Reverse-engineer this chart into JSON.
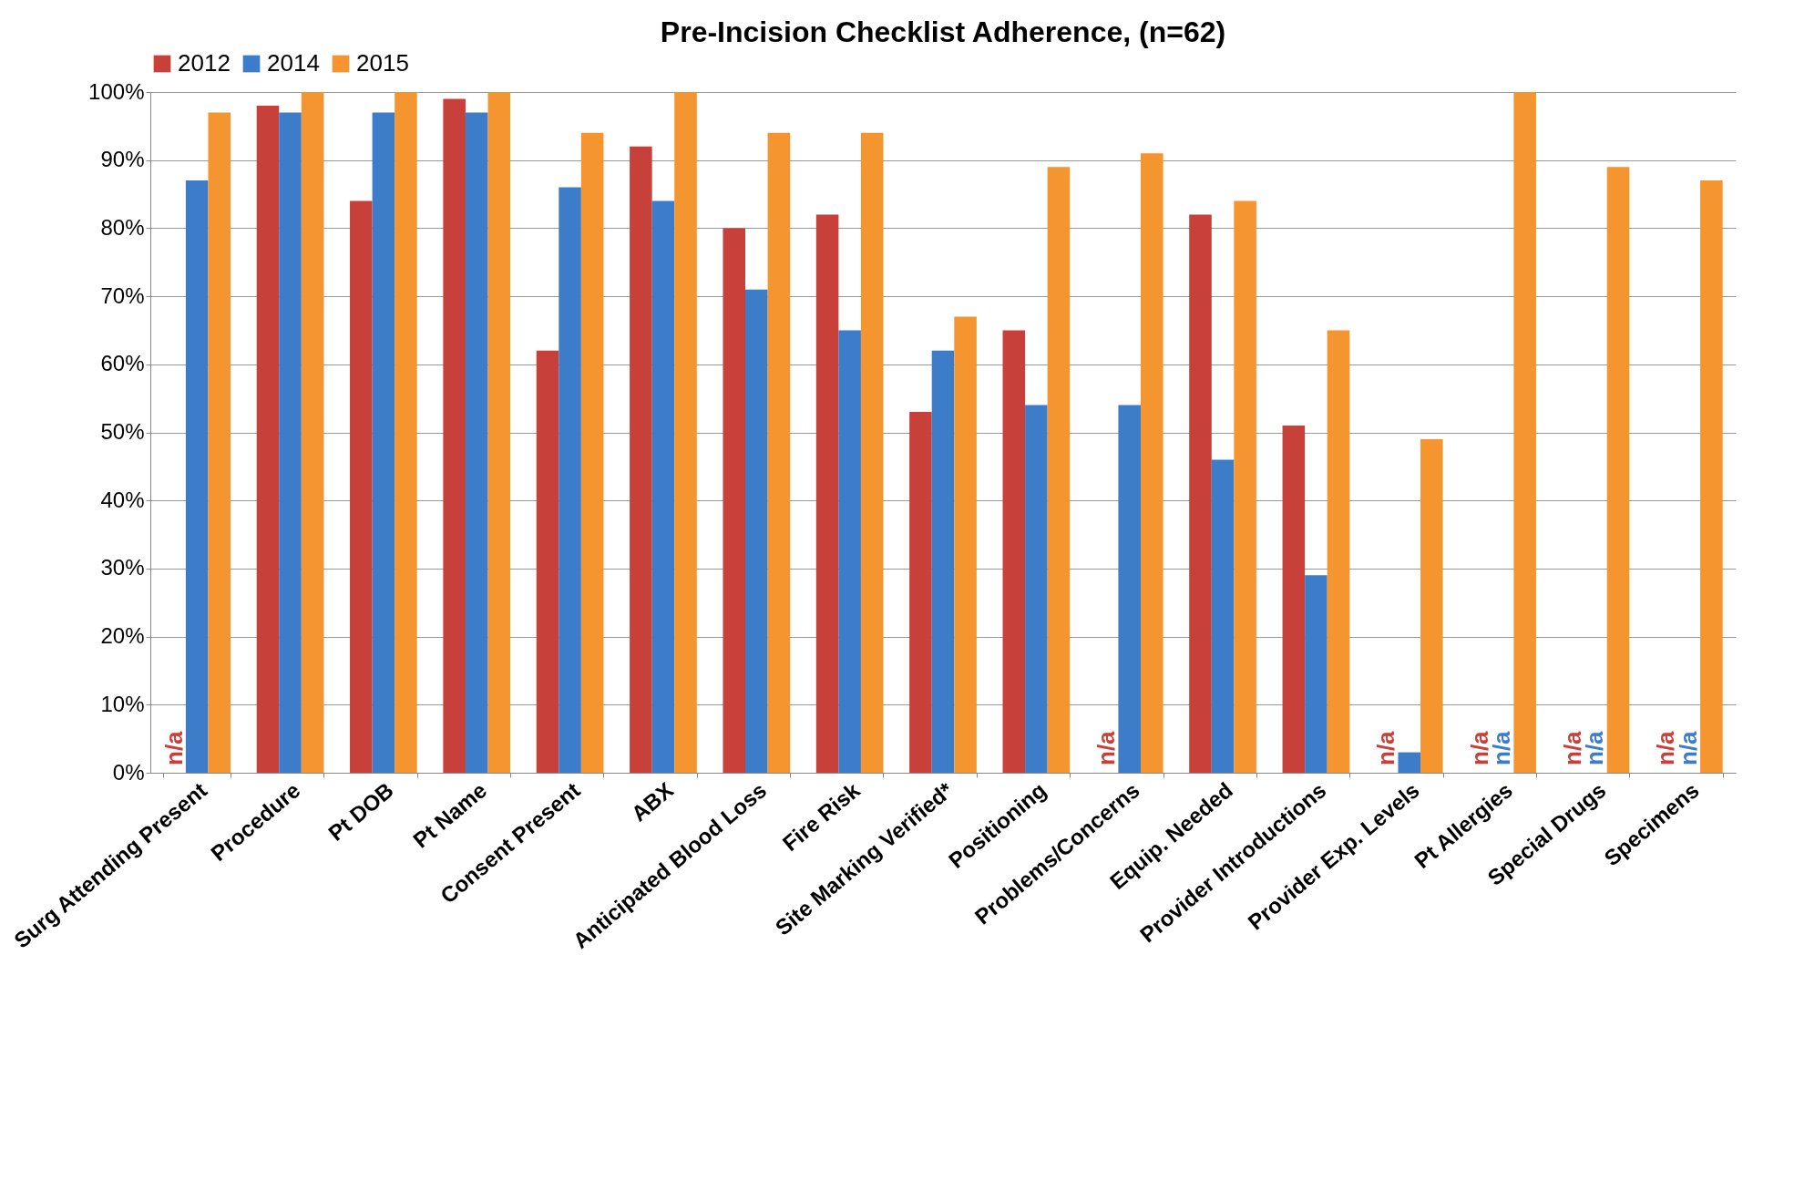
{
  "chart_data": {
    "type": "bar",
    "title": "Pre-Incision Checklist Adherence,       (n=62)",
    "categories": [
      "Surg Attending Present",
      "Procedure",
      "Pt DOB",
      "Pt Name",
      "Consent Present",
      "ABX",
      "Anticipated Blood Loss",
      "Fire Risk",
      "Site Marking Verified*",
      "Positioning",
      "Problems/Concerns",
      "Equip. Needed",
      "Provider Introductions",
      "Provider Exp. Levels",
      "Pt Allergies",
      "Special Drugs",
      "Specimens"
    ],
    "series": [
      {
        "name": "2012",
        "color": "#c8403a",
        "values": [
          null,
          98,
          84,
          99,
          62,
          92,
          80,
          82,
          53,
          65,
          null,
          82,
          51,
          null,
          null,
          null,
          null
        ],
        "value_labels": [
          "n/a",
          null,
          null,
          null,
          null,
          null,
          null,
          null,
          null,
          null,
          "n/a",
          null,
          null,
          "n/a",
          "n/a",
          "n/a",
          "n/a"
        ]
      },
      {
        "name": "2014",
        "color": "#3d7cc9",
        "values": [
          87,
          97,
          97,
          97,
          86,
          84,
          71,
          65,
          62,
          54,
          54,
          46,
          29,
          3,
          null,
          null,
          null
        ],
        "value_labels": [
          null,
          null,
          null,
          null,
          null,
          null,
          null,
          null,
          null,
          null,
          null,
          null,
          null,
          null,
          "n/a",
          "n/a",
          "n/a"
        ]
      },
      {
        "name": "2015",
        "color": "#f5952f",
        "values": [
          97,
          100,
          100,
          100,
          94,
          100,
          94,
          94,
          67,
          89,
          91,
          84,
          65,
          49,
          100,
          89,
          87
        ]
      }
    ],
    "ylim": [
      0,
      100
    ],
    "yticks": [
      {
        "value": 0,
        "label": "0%"
      },
      {
        "value": 10,
        "label": "10%"
      },
      {
        "value": 20,
        "label": "20%"
      },
      {
        "value": 30,
        "label": "30%"
      },
      {
        "value": 40,
        "label": "40%"
      },
      {
        "value": 50,
        "label": "50%"
      },
      {
        "value": 60,
        "label": "60%"
      },
      {
        "value": 70,
        "label": "70%"
      },
      {
        "value": 80,
        "label": "80%"
      },
      {
        "value": 90,
        "label": "90%"
      },
      {
        "value": 100,
        "label": "100%"
      }
    ],
    "grid": "y",
    "legend": "top"
  }
}
